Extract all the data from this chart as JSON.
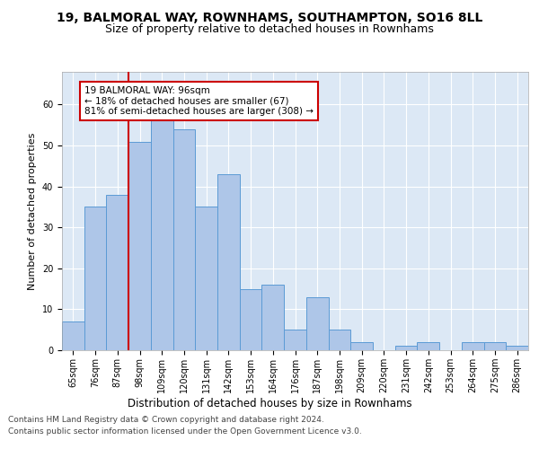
{
  "title1": "19, BALMORAL WAY, ROWNHAMS, SOUTHAMPTON, SO16 8LL",
  "title2": "Size of property relative to detached houses in Rownhams",
  "xlabel": "Distribution of detached houses by size in Rownhams",
  "ylabel": "Number of detached properties",
  "categories": [
    "65sqm",
    "76sqm",
    "87sqm",
    "98sqm",
    "109sqm",
    "120sqm",
    "131sqm",
    "142sqm",
    "153sqm",
    "164sqm",
    "176sqm",
    "187sqm",
    "198sqm",
    "209sqm",
    "220sqm",
    "231sqm",
    "242sqm",
    "253sqm",
    "264sqm",
    "275sqm",
    "286sqm"
  ],
  "values": [
    7,
    35,
    38,
    51,
    57,
    54,
    35,
    43,
    15,
    16,
    5,
    13,
    5,
    2,
    0,
    1,
    2,
    0,
    2,
    2,
    1
  ],
  "bar_color": "#aec6e8",
  "bar_edge_color": "#5b9bd5",
  "vline_x_index": 3,
  "vline_color": "#cc0000",
  "annotation_text": "19 BALMORAL WAY: 96sqm\n← 18% of detached houses are smaller (67)\n81% of semi-detached houses are larger (308) →",
  "annotation_box_color": "white",
  "annotation_box_edge_color": "#cc0000",
  "ylim": [
    0,
    68
  ],
  "yticks": [
    0,
    10,
    20,
    30,
    40,
    50,
    60
  ],
  "background_color": "#dce8f5",
  "grid_color": "#ffffff",
  "footer_line1": "Contains HM Land Registry data © Crown copyright and database right 2024.",
  "footer_line2": "Contains public sector information licensed under the Open Government Licence v3.0.",
  "title1_fontsize": 10,
  "title2_fontsize": 9,
  "xlabel_fontsize": 8.5,
  "ylabel_fontsize": 8,
  "tick_fontsize": 7,
  "annotation_fontsize": 7.5,
  "footer_fontsize": 6.5
}
